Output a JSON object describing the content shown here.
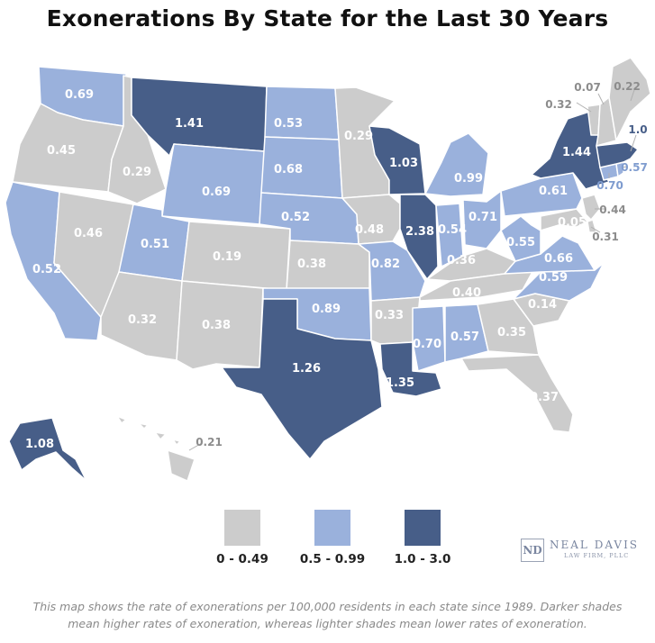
{
  "title": "Exonerations By State for the Last 30 Years",
  "colors": {
    "low": "#cccccc",
    "mid": "#9ab1dc",
    "high": "#475e88",
    "label_on_fill": "#ffffff",
    "label_outside_low": "#8c8c8c",
    "label_outside_mid": "#7f9ccf",
    "label_outside_high": "#475e88"
  },
  "states": [
    {
      "name": "Washington",
      "value": "0.69",
      "tier": "mid"
    },
    {
      "name": "Oregon",
      "value": "0.45",
      "tier": "low"
    },
    {
      "name": "California",
      "value": "0.52",
      "tier": "mid"
    },
    {
      "name": "Nevada",
      "value": "0.46",
      "tier": "low"
    },
    {
      "name": "Idaho",
      "value": "0.29",
      "tier": "low"
    },
    {
      "name": "Montana",
      "value": "1.41",
      "tier": "high"
    },
    {
      "name": "Wyoming",
      "value": "0.69",
      "tier": "mid"
    },
    {
      "name": "Utah",
      "value": "0.51",
      "tier": "mid"
    },
    {
      "name": "Arizona",
      "value": "0.32",
      "tier": "low"
    },
    {
      "name": "Colorado",
      "value": "0.19",
      "tier": "low"
    },
    {
      "name": "New Mexico",
      "value": "0.38",
      "tier": "low"
    },
    {
      "name": "North Dakota",
      "value": "0.53",
      "tier": "mid"
    },
    {
      "name": "South Dakota",
      "value": "0.68",
      "tier": "mid"
    },
    {
      "name": "Nebraska",
      "value": "0.52",
      "tier": "mid"
    },
    {
      "name": "Kansas",
      "value": "0.38",
      "tier": "low"
    },
    {
      "name": "Oklahoma",
      "value": "0.89",
      "tier": "mid"
    },
    {
      "name": "Texas",
      "value": "1.26",
      "tier": "high"
    },
    {
      "name": "Minnesota",
      "value": "0.29",
      "tier": "low"
    },
    {
      "name": "Iowa",
      "value": "0.48",
      "tier": "low"
    },
    {
      "name": "Missouri",
      "value": "0.82",
      "tier": "mid"
    },
    {
      "name": "Arkansas",
      "value": "0.33",
      "tier": "low"
    },
    {
      "name": "Louisiana",
      "value": "1.35",
      "tier": "high"
    },
    {
      "name": "Wisconsin",
      "value": "1.03",
      "tier": "high"
    },
    {
      "name": "Illinois",
      "value": "2.38",
      "tier": "high"
    },
    {
      "name": "Michigan",
      "value": "0.99",
      "tier": "mid"
    },
    {
      "name": "Indiana",
      "value": "0.54",
      "tier": "mid"
    },
    {
      "name": "Ohio",
      "value": "0.71",
      "tier": "mid"
    },
    {
      "name": "Kentucky",
      "value": "0.36",
      "tier": "low"
    },
    {
      "name": "Tennessee",
      "value": "0.40",
      "tier": "low"
    },
    {
      "name": "Mississippi",
      "value": "0.70",
      "tier": "mid"
    },
    {
      "name": "Alabama",
      "value": "0.57",
      "tier": "mid"
    },
    {
      "name": "Georgia",
      "value": "0.35",
      "tier": "low"
    },
    {
      "name": "Florida",
      "value": "0.37",
      "tier": "low"
    },
    {
      "name": "South Carolina",
      "value": "0.14",
      "tier": "low"
    },
    {
      "name": "North Carolina",
      "value": "0.59",
      "tier": "mid"
    },
    {
      "name": "Virginia",
      "value": "0.66",
      "tier": "mid"
    },
    {
      "name": "West Virginia",
      "value": "0.55",
      "tier": "mid"
    },
    {
      "name": "Pennsylvania",
      "value": "0.61",
      "tier": "mid"
    },
    {
      "name": "New York",
      "value": "1.44",
      "tier": "high"
    },
    {
      "name": "Maryland",
      "value": "0.05",
      "tier": "low"
    },
    {
      "name": "Delaware",
      "value": "0.31",
      "tier": "low"
    },
    {
      "name": "New Jersey",
      "value": "0.44",
      "tier": "low"
    },
    {
      "name": "Connecticut",
      "value": "0.70",
      "tier": "mid"
    },
    {
      "name": "Rhode Island",
      "value": "0.57",
      "tier": "mid"
    },
    {
      "name": "Massachusetts",
      "value": "1.0",
      "tier": "high"
    },
    {
      "name": "Vermont",
      "value": "0.32",
      "tier": "low"
    },
    {
      "name": "New Hampshire",
      "value": "0.07",
      "tier": "low"
    },
    {
      "name": "Maine",
      "value": "0.22",
      "tier": "low"
    },
    {
      "name": "Alaska",
      "value": "1.08",
      "tier": "high"
    },
    {
      "name": "Hawaii",
      "value": "0.21",
      "tier": "low"
    }
  ],
  "legend": [
    {
      "label": "0 - 0.49",
      "tier": "low",
      "color": "#cccccc"
    },
    {
      "label": "0.5 - 0.99",
      "tier": "mid",
      "color": "#9ab1dc"
    },
    {
      "label": "1.0 - 3.0",
      "tier": "high",
      "color": "#475e88"
    }
  ],
  "logo": {
    "mark": "ND",
    "name": "NEAL DAVIS",
    "subtitle": "LAW FIRM, PLLC"
  },
  "caption": "This map shows the rate of exonerations per 100,000 residents in each state since 1989. Darker shades mean higher rates of exoneration, whereas lighter shades mean lower rates of exoneration."
}
